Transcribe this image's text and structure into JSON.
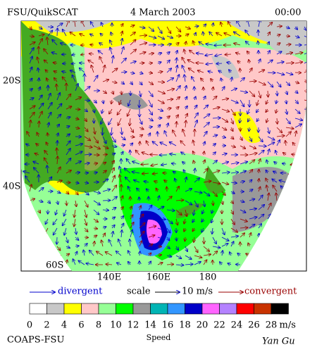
{
  "header": {
    "product": "FSU/QuikSCAT",
    "date": "4 March 2003",
    "time": "00:00"
  },
  "map": {
    "lat_labels": [
      "20S",
      "40S",
      "60S"
    ],
    "lon_labels": [
      "140E",
      "160E",
      "180"
    ]
  },
  "legend": {
    "divergent": "divergent",
    "scale": "scale",
    "scale_value": "10 m/s",
    "convergent": "convergent"
  },
  "colorbar": {
    "colors": [
      "#ffffff",
      "#c8c8c8",
      "#ffff00",
      "#ffc8c8",
      "#96ff96",
      "#00ff00",
      "#999999",
      "#00b4b4",
      "#3296ff",
      "#0000c8",
      "#ff64ff",
      "#b482ff",
      "#ff0000",
      "#c83200",
      "#000000"
    ],
    "ticks": [
      "0",
      "2",
      "4",
      "6",
      "8",
      "10",
      "12",
      "14",
      "16",
      "18",
      "20",
      "22",
      "24",
      "26",
      "28"
    ],
    "unit": "m/s",
    "label": "Speed"
  },
  "footer": {
    "left": "COAPS-FSU",
    "right": "Yan Gu"
  }
}
